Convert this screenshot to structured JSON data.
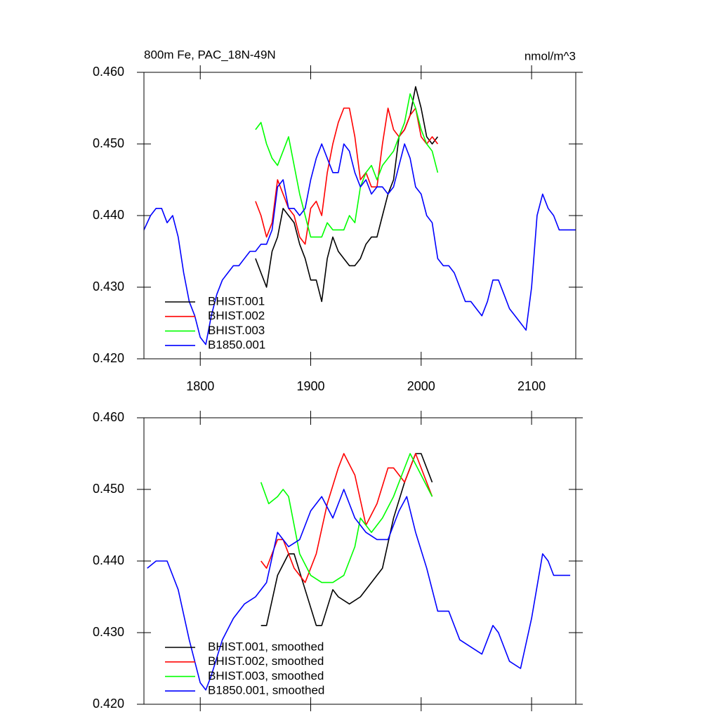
{
  "chart_data": [
    {
      "type": "line",
      "title": "800m Fe, PAC_18N-49N",
      "units": "nmol/m^3",
      "xlim": [
        1749,
        2140
      ],
      "xticks": [
        1800,
        1900,
        2000,
        2100
      ],
      "ylim": [
        0.42,
        0.46
      ],
      "yticks": [
        {
          "value": 0.42,
          "label": "0.420"
        },
        {
          "value": 0.43,
          "label": "0.430"
        },
        {
          "value": 0.44,
          "label": "0.440"
        },
        {
          "value": 0.45,
          "label": "0.450"
        },
        {
          "value": 0.46,
          "label": "0.460"
        }
      ],
      "legend": "lower left",
      "series": [
        {
          "name": "BHIST.001",
          "color": "#000000",
          "x": [
            1850,
            1855,
            1860,
            1865,
            1870,
            1875,
            1880,
            1885,
            1890,
            1895,
            1900,
            1905,
            1910,
            1915,
            1920,
            1925,
            1930,
            1935,
            1940,
            1945,
            1950,
            1955,
            1960,
            1965,
            1970,
            1975,
            1980,
            1985,
            1990,
            1995,
            2000,
            2005,
            2010,
            2015
          ],
          "values": [
            0.434,
            0.432,
            0.43,
            0.435,
            0.437,
            0.441,
            0.44,
            0.439,
            0.436,
            0.434,
            0.431,
            0.431,
            0.428,
            0.434,
            0.437,
            0.435,
            0.434,
            0.433,
            0.433,
            0.434,
            0.436,
            0.437,
            0.437,
            0.44,
            0.443,
            0.445,
            0.451,
            0.452,
            0.454,
            0.458,
            0.455,
            0.451,
            0.45,
            0.451
          ]
        },
        {
          "name": "BHIST.002",
          "color": "#ff0000",
          "x": [
            1850,
            1855,
            1860,
            1865,
            1870,
            1875,
            1880,
            1885,
            1890,
            1895,
            1900,
            1905,
            1910,
            1915,
            1920,
            1925,
            1930,
            1935,
            1940,
            1945,
            1950,
            1955,
            1960,
            1965,
            1970,
            1975,
            1980,
            1985,
            1990,
            1995,
            2000,
            2005,
            2010,
            2015
          ],
          "values": [
            0.442,
            0.44,
            0.437,
            0.439,
            0.445,
            0.443,
            0.441,
            0.44,
            0.437,
            0.436,
            0.441,
            0.442,
            0.44,
            0.446,
            0.45,
            0.453,
            0.455,
            0.455,
            0.451,
            0.445,
            0.446,
            0.444,
            0.444,
            0.45,
            0.455,
            0.452,
            0.451,
            0.452,
            0.454,
            0.455,
            0.451,
            0.45,
            0.451,
            0.45
          ]
        },
        {
          "name": "BHIST.003",
          "color": "#00ff00",
          "x": [
            1850,
            1855,
            1860,
            1865,
            1870,
            1875,
            1880,
            1885,
            1890,
            1895,
            1900,
            1905,
            1910,
            1915,
            1920,
            1925,
            1930,
            1935,
            1940,
            1945,
            1950,
            1955,
            1960,
            1965,
            1970,
            1975,
            1980,
            1985,
            1990,
            1995,
            2000,
            2005,
            2010,
            2015
          ],
          "values": [
            0.452,
            0.453,
            0.45,
            0.448,
            0.447,
            0.449,
            0.451,
            0.447,
            0.443,
            0.44,
            0.437,
            0.437,
            0.437,
            0.439,
            0.438,
            0.438,
            0.438,
            0.44,
            0.439,
            0.444,
            0.446,
            0.447,
            0.445,
            0.447,
            0.448,
            0.449,
            0.451,
            0.453,
            0.457,
            0.455,
            0.452,
            0.45,
            0.449,
            0.446
          ]
        },
        {
          "name": "B1850.001",
          "color": "#0000ff",
          "x": [
            1749,
            1755,
            1760,
            1765,
            1770,
            1775,
            1780,
            1785,
            1790,
            1795,
            1800,
            1805,
            1810,
            1815,
            1820,
            1825,
            1830,
            1835,
            1840,
            1845,
            1850,
            1855,
            1860,
            1865,
            1870,
            1875,
            1880,
            1885,
            1890,
            1895,
            1900,
            1905,
            1910,
            1915,
            1920,
            1925,
            1930,
            1935,
            1940,
            1945,
            1950,
            1955,
            1960,
            1965,
            1970,
            1975,
            1980,
            1985,
            1990,
            1995,
            2000,
            2005,
            2010,
            2015,
            2020,
            2025,
            2030,
            2035,
            2040,
            2045,
            2050,
            2055,
            2060,
            2065,
            2070,
            2075,
            2080,
            2085,
            2090,
            2095,
            2100,
            2105,
            2110,
            2115,
            2120,
            2125,
            2130,
            2135,
            2140
          ],
          "values": [
            0.438,
            0.44,
            0.441,
            0.441,
            0.439,
            0.44,
            0.437,
            0.432,
            0.428,
            0.426,
            0.423,
            0.422,
            0.426,
            0.429,
            0.431,
            0.432,
            0.433,
            0.433,
            0.434,
            0.435,
            0.435,
            0.436,
            0.436,
            0.438,
            0.444,
            0.445,
            0.441,
            0.441,
            0.44,
            0.441,
            0.445,
            0.448,
            0.45,
            0.448,
            0.446,
            0.446,
            0.45,
            0.449,
            0.446,
            0.444,
            0.445,
            0.443,
            0.444,
            0.444,
            0.443,
            0.444,
            0.447,
            0.45,
            0.448,
            0.444,
            0.443,
            0.44,
            0.439,
            0.434,
            0.433,
            0.433,
            0.432,
            0.43,
            0.428,
            0.428,
            0.427,
            0.426,
            0.428,
            0.431,
            0.431,
            0.429,
            0.427,
            0.426,
            0.425,
            0.424,
            0.43,
            0.44,
            0.443,
            0.441,
            0.44,
            0.438,
            0.438,
            0.438,
            0.438
          ]
        }
      ]
    },
    {
      "type": "line",
      "xlim": [
        1749,
        2140
      ],
      "xticks": [
        1800,
        1900,
        2000,
        2100
      ],
      "ylim": [
        0.42,
        0.46
      ],
      "yticks": [
        {
          "value": 0.42,
          "label": "0.420"
        },
        {
          "value": 0.43,
          "label": "0.430"
        },
        {
          "value": 0.44,
          "label": "0.440"
        },
        {
          "value": 0.45,
          "label": "0.450"
        },
        {
          "value": 0.46,
          "label": "0.460"
        }
      ],
      "legend": "lower left",
      "series": [
        {
          "name": "BHIST.001, smoothed",
          "color": "#000000",
          "x": [
            1855,
            1860,
            1870,
            1880,
            1885,
            1895,
            1905,
            1910,
            1920,
            1925,
            1935,
            1945,
            1955,
            1965,
            1975,
            1985,
            1995,
            2000,
            2010
          ],
          "values": [
            0.431,
            0.431,
            0.438,
            0.441,
            0.441,
            0.436,
            0.431,
            0.431,
            0.436,
            0.435,
            0.434,
            0.435,
            0.437,
            0.439,
            0.446,
            0.451,
            0.455,
            0.455,
            0.451
          ]
        },
        {
          "name": "BHIST.002, smoothed",
          "color": "#ff0000",
          "x": [
            1855,
            1860,
            1870,
            1875,
            1885,
            1895,
            1905,
            1915,
            1925,
            1930,
            1940,
            1950,
            1960,
            1970,
            1975,
            1985,
            1995,
            2000,
            2010
          ],
          "values": [
            0.44,
            0.439,
            0.443,
            0.443,
            0.439,
            0.437,
            0.441,
            0.448,
            0.453,
            0.455,
            0.452,
            0.445,
            0.448,
            0.453,
            0.453,
            0.451,
            0.455,
            0.453,
            0.449
          ]
        },
        {
          "name": "BHIST.003, smoothed",
          "color": "#00ff00",
          "x": [
            1855,
            1862,
            1870,
            1875,
            1880,
            1890,
            1900,
            1910,
            1920,
            1930,
            1940,
            1945,
            1955,
            1965,
            1975,
            1985,
            1990,
            2000,
            2010
          ],
          "values": [
            0.451,
            0.448,
            0.449,
            0.45,
            0.449,
            0.441,
            0.438,
            0.437,
            0.437,
            0.438,
            0.442,
            0.446,
            0.444,
            0.446,
            0.449,
            0.453,
            0.455,
            0.452,
            0.449
          ]
        },
        {
          "name": "B1850.001, smoothed",
          "color": "#0000ff",
          "x": [
            1752,
            1760,
            1770,
            1780,
            1790,
            1800,
            1805,
            1810,
            1820,
            1830,
            1840,
            1850,
            1860,
            1870,
            1880,
            1890,
            1900,
            1910,
            1920,
            1930,
            1940,
            1950,
            1960,
            1970,
            1980,
            1987,
            1995,
            2005,
            2015,
            2025,
            2035,
            2045,
            2055,
            2065,
            2070,
            2080,
            2090,
            2100,
            2110,
            2115,
            2120,
            2130,
            2135
          ],
          "values": [
            0.439,
            0.44,
            0.44,
            0.436,
            0.429,
            0.423,
            0.422,
            0.424,
            0.429,
            0.432,
            0.434,
            0.435,
            0.437,
            0.444,
            0.442,
            0.443,
            0.447,
            0.449,
            0.446,
            0.45,
            0.446,
            0.444,
            0.443,
            0.443,
            0.447,
            0.449,
            0.444,
            0.439,
            0.433,
            0.433,
            0.429,
            0.428,
            0.427,
            0.431,
            0.43,
            0.426,
            0.425,
            0.432,
            0.441,
            0.44,
            0.438,
            0.438,
            0.438
          ]
        }
      ]
    }
  ]
}
